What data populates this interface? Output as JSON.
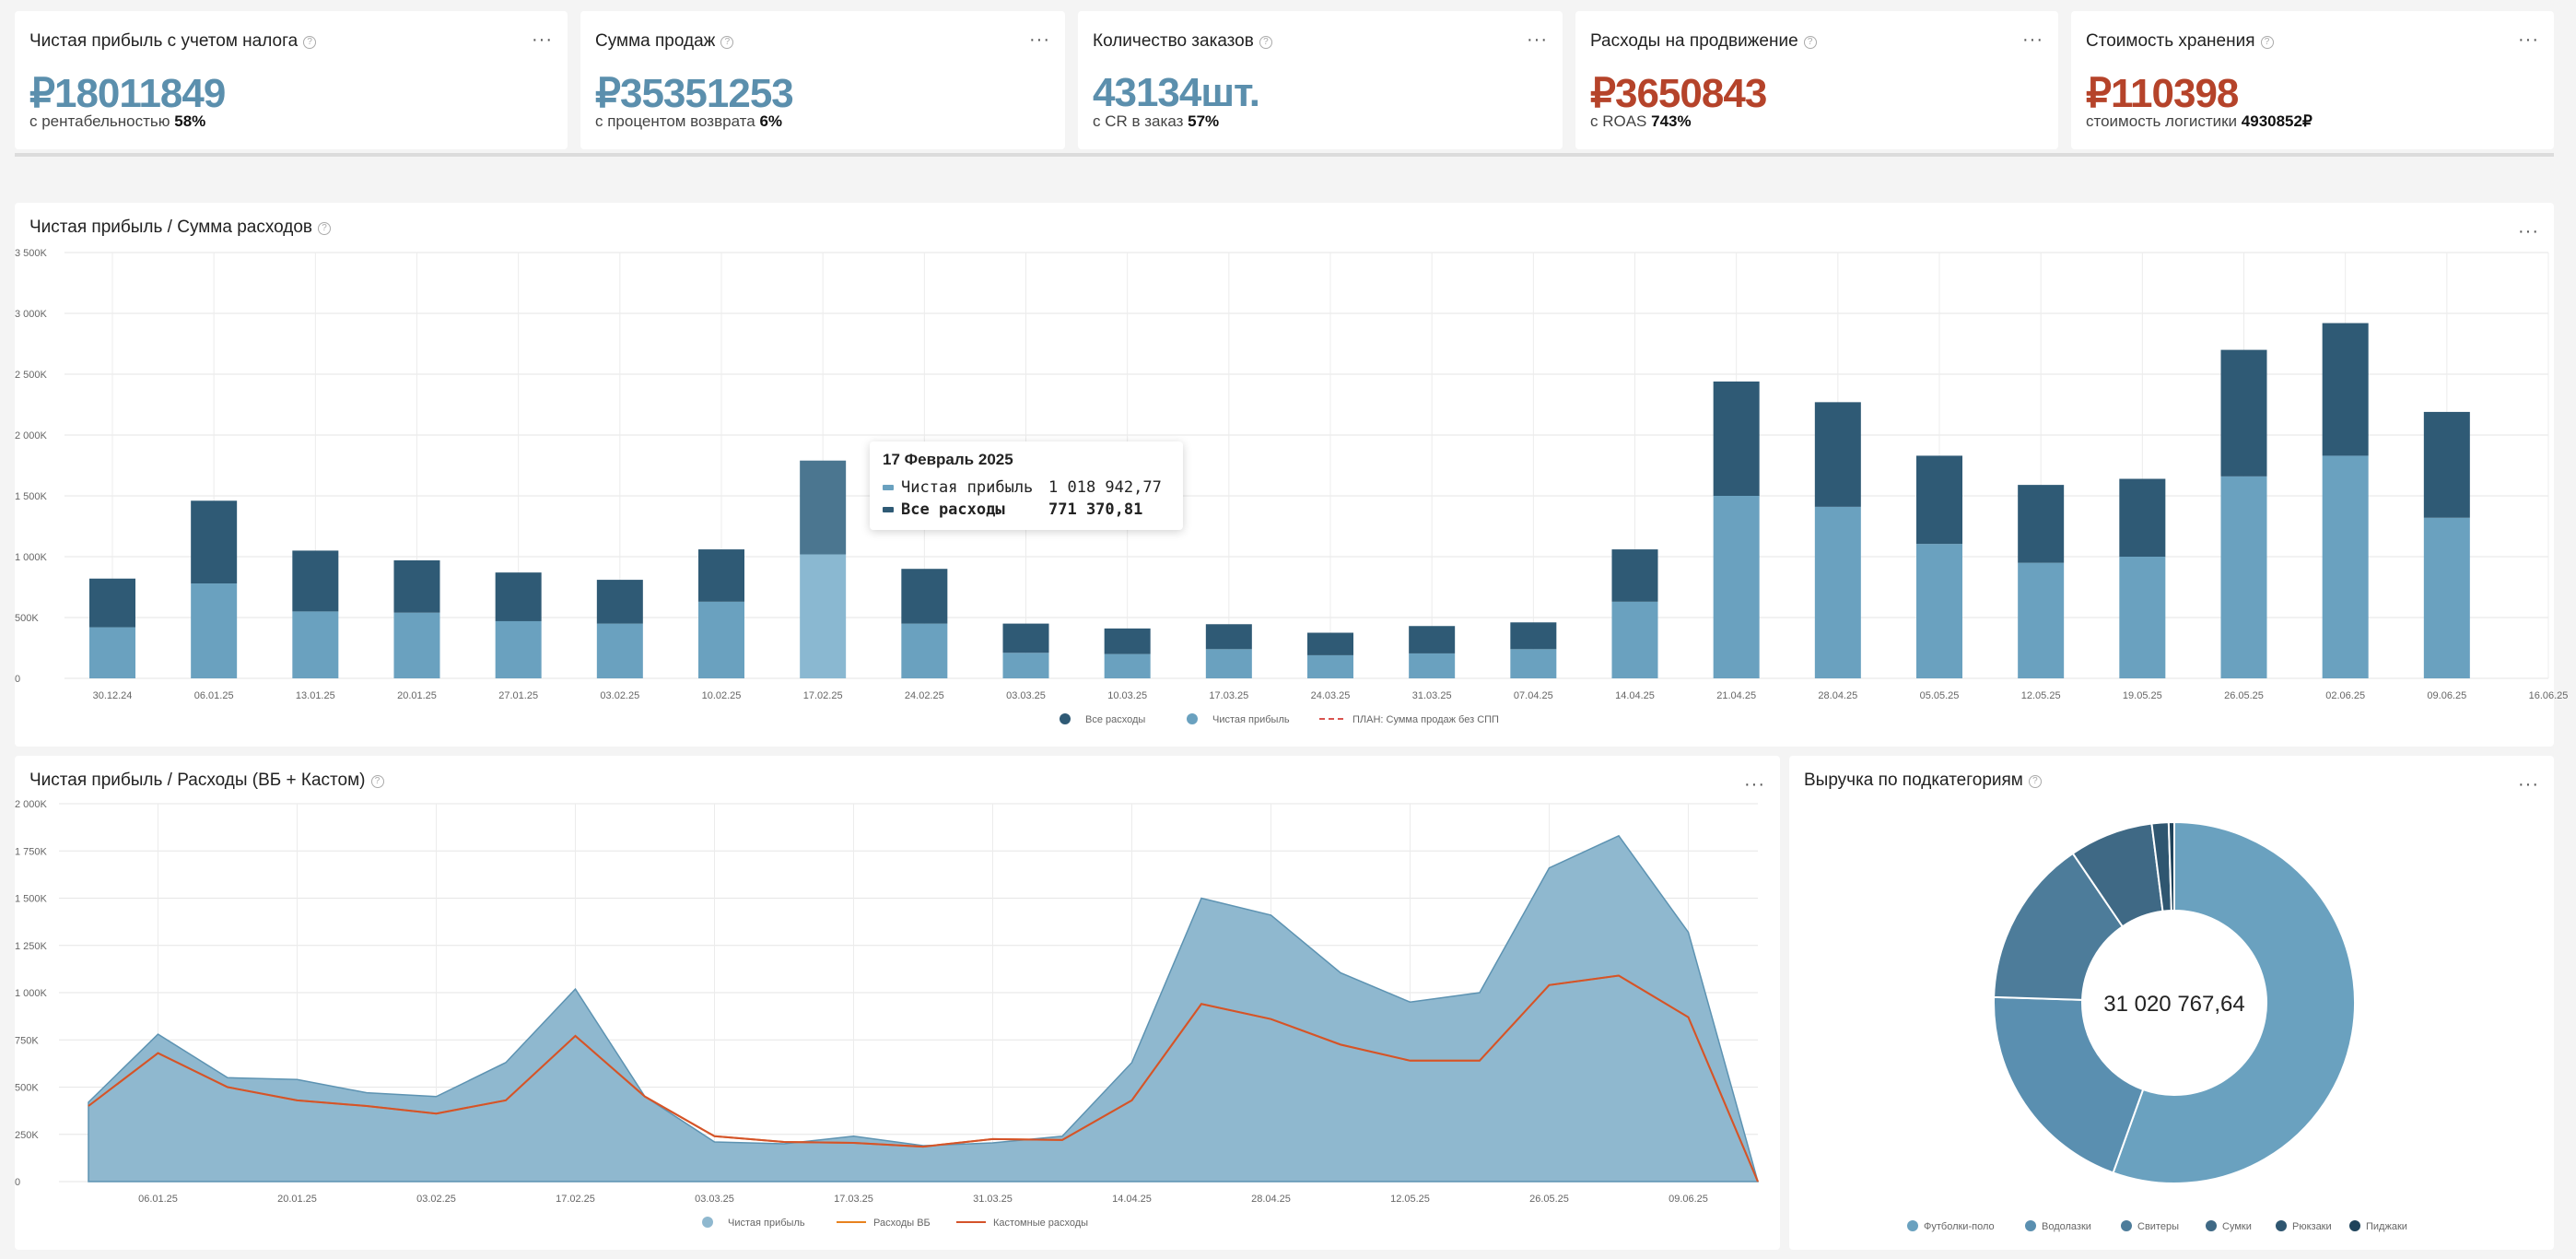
{
  "kpis": [
    {
      "title": "Чистая прибыль с учетом налога",
      "value": "₽18011849",
      "value_color": "#5b8fad",
      "sub_label": "с рентабельностью",
      "sub_value": "58%"
    },
    {
      "title": "Сумма продаж",
      "value": "₽35351253",
      "value_color": "#5b8fad",
      "sub_label": "с процентом возврата",
      "sub_value": "6%"
    },
    {
      "title": "Количество заказов",
      "value": "43134шт.",
      "value_color": "#5b8fad",
      "sub_label": "с CR в заказ",
      "sub_value": "57%"
    },
    {
      "title": "Расходы на продвижение",
      "value": "₽3650843",
      "value_color": "#b5432a",
      "sub_label": "с ROAS",
      "sub_value": "743%"
    },
    {
      "title": "Стоимость хранения",
      "value": "₽110398",
      "value_color": "#b5432a",
      "sub_label": "стоимость логистики",
      "sub_value": "4930852₽"
    }
  ],
  "help_glyph": "?",
  "menu_glyph": "···",
  "colors": {
    "profit": "#6aa1bf",
    "expenses": "#2f5a75",
    "highlight_profit": "#8ab8d1",
    "highlight_exp": "#4b7690",
    "plan": "#d9534f",
    "area": "#8fb8cf",
    "area_line": "#5d93b2",
    "wb_line": "#e8821f",
    "custom_line": "#d4532a"
  },
  "chart1": {
    "title": "Чистая прибыль / Сумма расходов",
    "chart_data": {
      "type": "bar",
      "stacked": true,
      "categories": [
        "30.12.24",
        "06.01.25",
        "13.01.25",
        "20.01.25",
        "27.01.25",
        "03.02.25",
        "10.02.25",
        "17.02.25",
        "24.02.25",
        "03.03.25",
        "10.03.25",
        "17.03.25",
        "24.03.25",
        "31.03.25",
        "07.04.25",
        "14.04.25",
        "21.04.25",
        "28.04.25",
        "05.05.25",
        "12.05.25",
        "19.05.25",
        "26.05.25",
        "02.06.25",
        "09.06.25",
        "16.06.25"
      ],
      "series": [
        {
          "name": "Чистая прибыль",
          "values": [
            420,
            780,
            550,
            540,
            470,
            450,
            630,
            1019,
            450,
            210,
            200,
            240,
            190,
            205,
            240,
            630,
            1500,
            1410,
            1105,
            950,
            1000,
            1660,
            1830,
            1320,
            0
          ]
        },
        {
          "name": "Все расходы",
          "values": [
            400,
            680,
            500,
            430,
            400,
            360,
            430,
            771,
            450,
            240,
            210,
            205,
            185,
            225,
            220,
            430,
            940,
            860,
            725,
            640,
            640,
            1040,
            1090,
            870,
            0
          ]
        }
      ],
      "plan_series_name": "ПЛАН: Сумма продаж без СПП",
      "yticks": [
        "0",
        "500K",
        "1 000K",
        "1 500K",
        "2 000K",
        "2 500K",
        "3 000K",
        "3 500K"
      ],
      "ylim": [
        0,
        3500
      ],
      "grid": true,
      "legend": "bottom"
    },
    "tooltip": {
      "title": "17 Февраль 2025",
      "rows": [
        {
          "label": "Чистая прибыль",
          "value": "1 018 942,77",
          "bold": false
        },
        {
          "label": "Все расходы",
          "value": "771 370,81",
          "bold": true
        }
      ]
    }
  },
  "chart2": {
    "title": "Чистая прибыль / Расходы (ВБ + Кастом)",
    "chart_data": {
      "type": "area",
      "x": [
        "30.12.24",
        "06.01.25",
        "13.01.25",
        "20.01.25",
        "27.01.25",
        "03.02.25",
        "10.02.25",
        "17.02.25",
        "24.02.25",
        "03.03.25",
        "10.03.25",
        "17.03.25",
        "24.03.25",
        "31.03.25",
        "07.04.25",
        "14.04.25",
        "21.04.25",
        "28.04.25",
        "05.05.25",
        "12.05.25",
        "19.05.25",
        "26.05.25",
        "02.06.25",
        "09.06.25",
        "16.06.25"
      ],
      "xticks": [
        "06.01.25",
        "20.01.25",
        "03.02.25",
        "17.02.25",
        "03.03.25",
        "17.03.25",
        "31.03.25",
        "14.04.25",
        "28.04.25",
        "12.05.25",
        "26.05.25",
        "09.06.25"
      ],
      "series": [
        {
          "name": "Чистая прибыль",
          "values": [
            420,
            780,
            550,
            540,
            470,
            450,
            630,
            1019,
            450,
            210,
            200,
            240,
            190,
            205,
            240,
            630,
            1500,
            1410,
            1105,
            950,
            1000,
            1660,
            1830,
            1320,
            0
          ]
        },
        {
          "name": "Расходы ВБ",
          "values": [
            400,
            680,
            500,
            430,
            400,
            360,
            430,
            771,
            450,
            240,
            210,
            205,
            185,
            225,
            220,
            430,
            940,
            860,
            725,
            640,
            640,
            1040,
            1090,
            870,
            0
          ]
        },
        {
          "name": "Кастомные расходы",
          "values": [
            400,
            680,
            500,
            430,
            400,
            360,
            430,
            771,
            450,
            240,
            210,
            205,
            185,
            225,
            220,
            430,
            940,
            860,
            725,
            640,
            640,
            1040,
            1090,
            870,
            0
          ]
        }
      ],
      "yticks": [
        "0",
        "250K",
        "500K",
        "750K",
        "1 000K",
        "1 250K",
        "1 500K",
        "1 750K",
        "2 000K"
      ],
      "ylim": [
        0,
        2000
      ],
      "grid": true,
      "legend": "bottom"
    }
  },
  "chart3": {
    "title": "Выручка по подкатегориям",
    "center_label": "31 020 767,64",
    "chart_data": {
      "type": "pie",
      "categories": [
        "Футболки-поло",
        "Водолазки",
        "Свитеры",
        "Сумки",
        "Рюкзаки",
        "Пиджаки"
      ],
      "values": [
        55.5,
        20.0,
        15.0,
        7.5,
        1.5,
        0.5
      ],
      "colors": [
        "#6aa1bf",
        "#5a8fb0",
        "#4d7c9a",
        "#3f6985",
        "#2f5670",
        "#1f435b"
      ],
      "legend": "bottom"
    }
  }
}
